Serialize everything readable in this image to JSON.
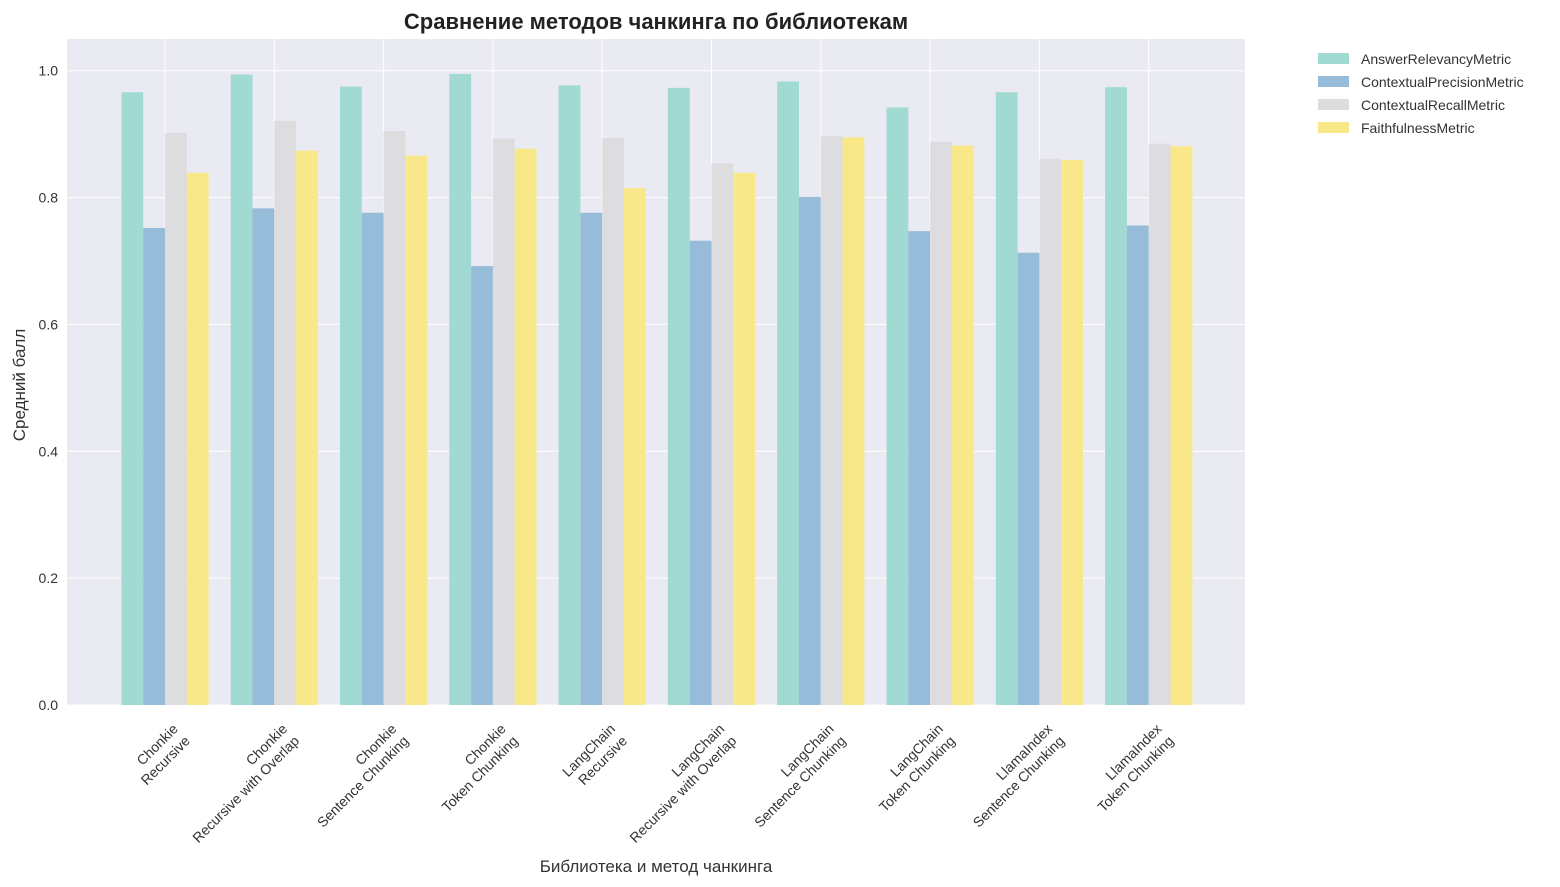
{
  "chart_data": {
    "type": "bar",
    "title": "Сравнение методов чанкинга по библиотекам",
    "xlabel": "Библиотека и метод чанкинга",
    "ylabel": "Средний балл",
    "ylim": [
      0,
      1.05
    ],
    "yticks": [
      0.0,
      0.2,
      0.4,
      0.6,
      0.8,
      1.0
    ],
    "ytick_labels": [
      "0.0",
      "0.2",
      "0.4",
      "0.6",
      "0.8",
      "1.0"
    ],
    "grid": true,
    "legend_position": "outside-top-right",
    "categories": [
      [
        "Chonkie",
        "Recursive"
      ],
      [
        "Chonkie",
        "Recursive with Overlap"
      ],
      [
        "Chonkie",
        "Sentence Chunking"
      ],
      [
        "Chonkie",
        "Token Chunking"
      ],
      [
        "LangChain",
        "Recursive"
      ],
      [
        "LangChain",
        "Recursive with Overlap"
      ],
      [
        "LangChain",
        "Sentence Chunking"
      ],
      [
        "LangChain",
        "Token Chunking"
      ],
      [
        "LlamaIndex",
        "Sentence Chunking"
      ],
      [
        "LlamaIndex",
        "Token Chunking"
      ]
    ],
    "series": [
      {
        "name": "AnswerRelevancyMetric",
        "color": "#a0dad2",
        "values": [
          0.966,
          0.994,
          0.975,
          0.995,
          0.977,
          0.973,
          0.983,
          0.942,
          0.966,
          0.974
        ]
      },
      {
        "name": "ContextualPrecisionMetric",
        "color": "#97bcda",
        "values": [
          0.752,
          0.783,
          0.776,
          0.692,
          0.776,
          0.732,
          0.801,
          0.747,
          0.713,
          0.756
        ]
      },
      {
        "name": "ContextualRecallMetric",
        "color": "#dddde0",
        "values": [
          0.902,
          0.921,
          0.905,
          0.893,
          0.894,
          0.854,
          0.897,
          0.888,
          0.861,
          0.885
        ]
      },
      {
        "name": "FaithfulnessMetric",
        "color": "#f8e88a",
        "values": [
          0.839,
          0.874,
          0.866,
          0.877,
          0.815,
          0.839,
          0.895,
          0.882,
          0.859,
          0.881
        ]
      }
    ]
  },
  "colors": {
    "plot_background": "#eaeaf2",
    "grid": "#ffffff"
  }
}
